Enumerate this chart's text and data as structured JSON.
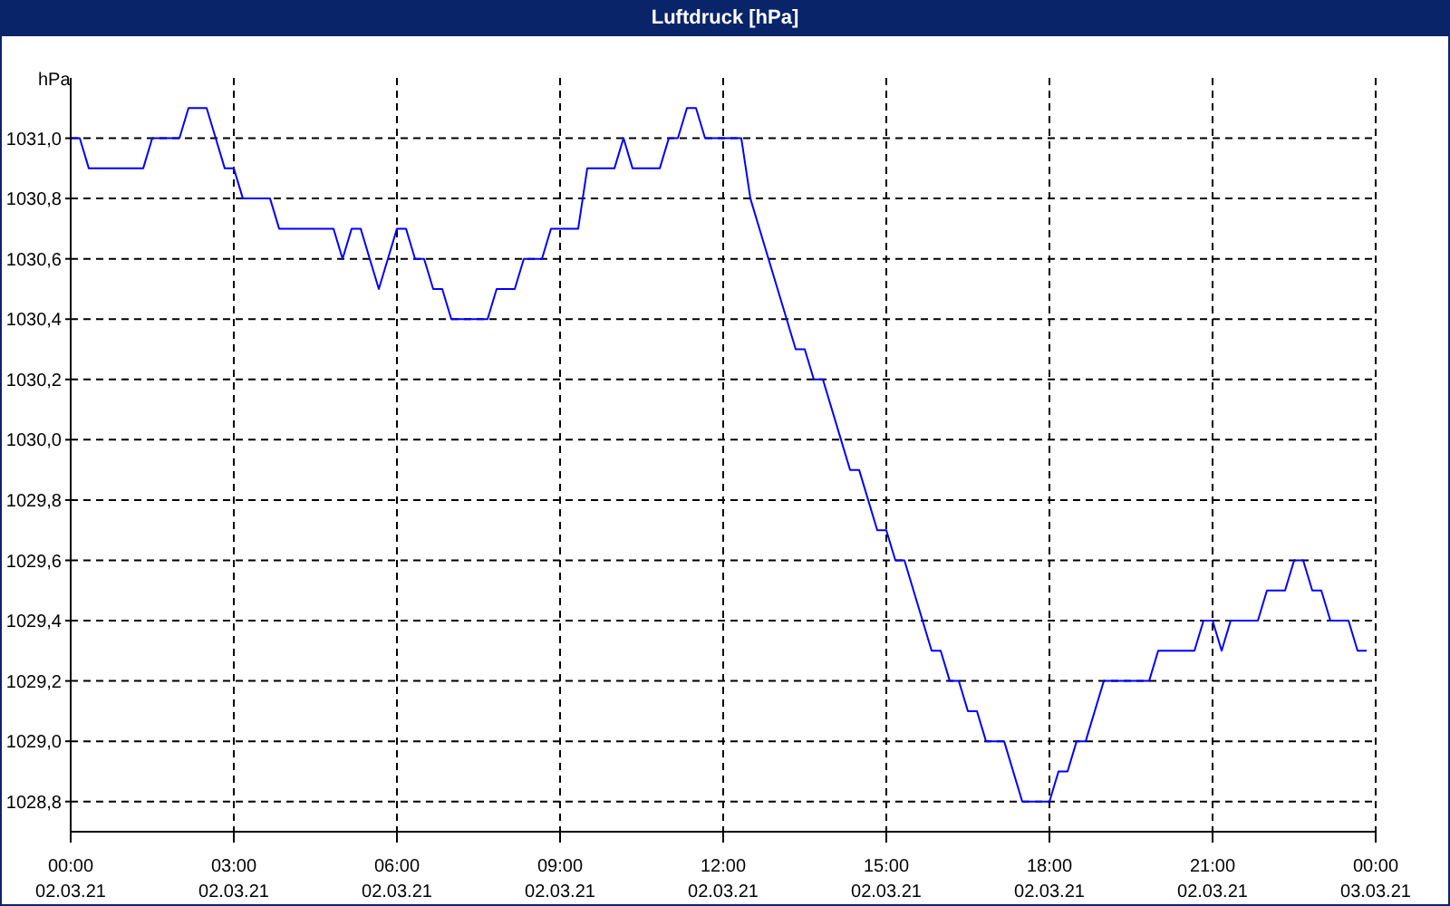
{
  "chart_data": {
    "type": "line",
    "title": "Luftdruck [hPa]",
    "ylabel": "hPa",
    "x": [
      "--03-02T00:00",
      "--03-02T00:10",
      "--03-02T00:20",
      "--03-02T01:20",
      "--03-02T01:30",
      "--03-02T02:00",
      "--03-02T02:10",
      "--03-02T02:30",
      "--03-02T02:40",
      "--03-02T02:50",
      "--03-02T03:00",
      "--03-02T03:10",
      "--03-02T03:40",
      "--03-02T03:50",
      "--03-02T04:50",
      "--03-02T05:00",
      "--03-02T05:10",
      "--03-02T05:20",
      "--03-02T05:40",
      "--03-02T05:50",
      "--03-02T06:00",
      "--03-02T06:10",
      "--03-02T06:20",
      "--03-02T06:30",
      "--03-02T06:40",
      "--03-02T06:50",
      "--03-02T07:00",
      "--03-02T07:40",
      "--03-02T07:50",
      "--03-02T08:10",
      "--03-02T08:20",
      "--03-02T08:40",
      "--03-02T08:50",
      "--03-02T09:20",
      "--03-02T09:30",
      "--03-02T10:00",
      "--03-02T10:10",
      "--03-02T10:20",
      "--03-02T10:50",
      "--03-02T11:00",
      "--03-02T11:10",
      "--03-02T11:20",
      "--03-02T11:30",
      "--03-02T11:40",
      "--03-02T12:20",
      "--03-02T12:30",
      "--03-02T12:50",
      "--03-02T13:10",
      "--03-02T13:20",
      "--03-02T13:30",
      "--03-02T13:40",
      "--03-02T13:50",
      "--03-02T14:10",
      "--03-02T14:20",
      "--03-02T14:30",
      "--03-02T14:50",
      "--03-02T15:00",
      "--03-02T15:10",
      "--03-02T15:20",
      "--03-02T15:40",
      "--03-02T15:50",
      "--03-02T16:00",
      "--03-02T16:10",
      "--03-02T16:20",
      "--03-02T16:30",
      "--03-02T16:40",
      "--03-02T16:50",
      "--03-02T17:10",
      "--03-02T17:30",
      "--03-02T18:00",
      "--03-02T18:10",
      "--03-02T18:20",
      "--03-02T18:30",
      "--03-02T18:40",
      "--03-02T19:00",
      "--03-02T19:50",
      "--03-02T20:00",
      "--03-02T20:40",
      "--03-02T20:50",
      "--03-02T21:00",
      "--03-02T21:10",
      "--03-02T21:20",
      "--03-02T21:50",
      "--03-02T22:00",
      "--03-02T22:20",
      "--03-02T22:30",
      "--03-02T22:40",
      "--03-02T22:50",
      "--03-02T23:00",
      "--03-02T23:10",
      "--03-02T23:30",
      "--03-02T23:40",
      "--03-02T23:50"
    ],
    "series": [
      {
        "color": "#0000ff",
        "values": [
          1031.0,
          1031.0,
          1030.9,
          1030.9,
          1031.0,
          1031.0,
          1031.1,
          1031.1,
          1031.0,
          1030.9,
          1030.9,
          1030.8,
          1030.8,
          1030.7,
          1030.7,
          1030.6,
          1030.7,
          1030.7,
          1030.5,
          1030.6,
          1030.7,
          1030.7,
          1030.6,
          1030.6,
          1030.5,
          1030.5,
          1030.4,
          1030.4,
          1030.5,
          1030.5,
          1030.6,
          1030.6,
          1030.7,
          1030.7,
          1030.9,
          1030.9,
          1031.0,
          1030.9,
          1030.9,
          1031.0,
          1031.0,
          1031.1,
          1031.1,
          1031.0,
          1031.0,
          1030.8,
          1030.6,
          1030.4,
          1030.3,
          1030.3,
          1030.2,
          1030.2,
          1030.0,
          1029.9,
          1029.9,
          1029.7,
          1029.7,
          1029.6,
          1029.6,
          1029.4,
          1029.3,
          1029.3,
          1029.2,
          1029.2,
          1029.1,
          1029.1,
          1029.0,
          1029.0,
          1028.8,
          1028.8,
          1028.9,
          1028.9,
          1029.0,
          1029.0,
          1029.2,
          1029.2,
          1029.3,
          1029.3,
          1029.4,
          1029.4,
          1029.3,
          1029.4,
          1029.4,
          1029.5,
          1029.5,
          1029.6,
          1029.6,
          1029.5,
          1029.5,
          1029.4,
          1029.4,
          1029.3,
          1029.3
        ]
      }
    ],
    "xlim": [
      "--03-02T00:00",
      "--03-03T00:00"
    ],
    "xticks": [
      {
        "value": "--03-02T00:00",
        "label": "00:00\n02.03.21"
      },
      {
        "value": "--03-02T03:00",
        "label": "03:00\n02.03.21"
      },
      {
        "value": "--03-02T06:00",
        "label": "06:00\n02.03.21"
      },
      {
        "value": "--03-02T09:00",
        "label": "09:00\n02.03.21"
      },
      {
        "value": "--03-02T12:00",
        "label": "12:00\n02.03.21"
      },
      {
        "value": "--03-02T15:00",
        "label": "15:00\n02.03.21"
      },
      {
        "value": "--03-02T18:00",
        "label": "18:00\n02.03.21"
      },
      {
        "value": "--03-02T21:00",
        "label": "21:00\n02.03.21"
      },
      {
        "value": "--03-03T00:00",
        "label": "00:00\n03.03.21"
      }
    ],
    "ylim": [
      1028.7,
      1031.2
    ],
    "yticks": [
      {
        "value": 1028.8,
        "label": "1028,8"
      },
      {
        "value": 1029.0,
        "label": "1029,0"
      },
      {
        "value": 1029.2,
        "label": "1029,2"
      },
      {
        "value": 1029.4,
        "label": "1029,4"
      },
      {
        "value": 1029.6,
        "label": "1029,6"
      },
      {
        "value": 1029.8,
        "label": "1029,8"
      },
      {
        "value": 1030.0,
        "label": "1030,0"
      },
      {
        "value": 1030.2,
        "label": "1030,2"
      },
      {
        "value": 1030.4,
        "label": "1030,4"
      },
      {
        "value": 1030.6,
        "label": "1030,6"
      },
      {
        "value": 1030.8,
        "label": "1030,8"
      },
      {
        "value": 1031.0,
        "label": "1031,0"
      }
    ],
    "grid": true,
    "marker": "none",
    "line_style": "solid",
    "legend": false
  }
}
